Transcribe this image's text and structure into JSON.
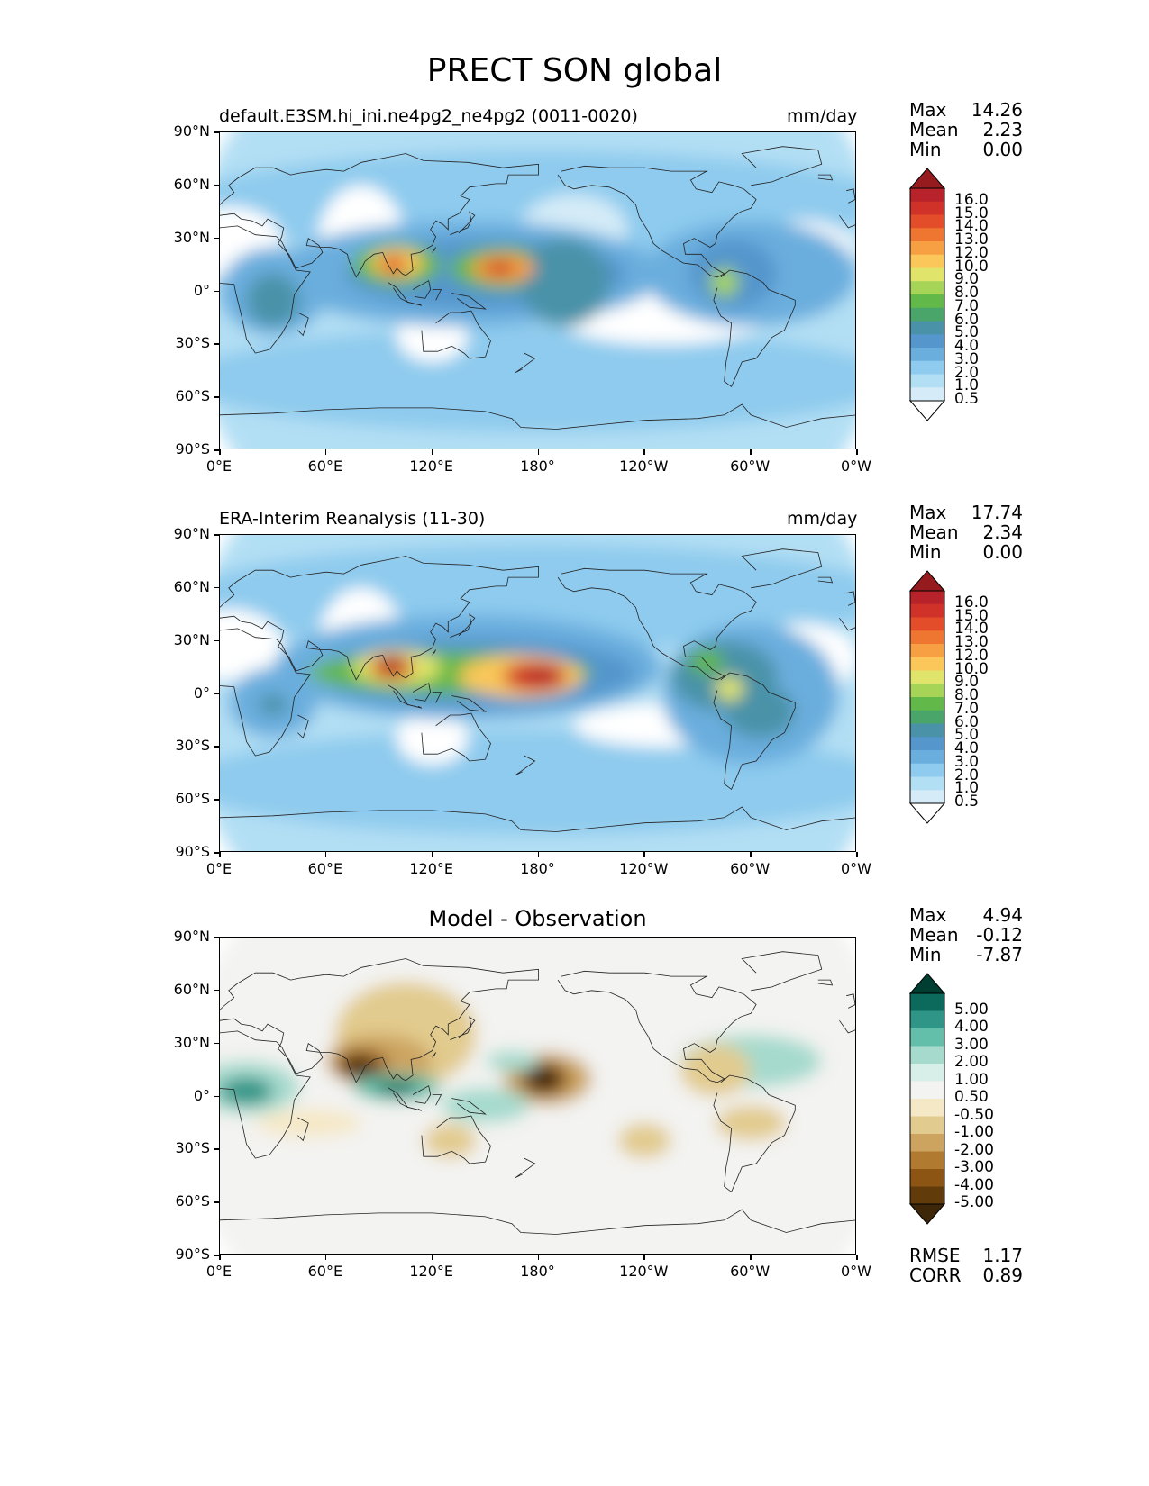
{
  "title": "PRECT SON global",
  "lat_ticks": [
    "90°N",
    "60°N",
    "30°N",
    "0°",
    "30°S",
    "60°S",
    "90°S"
  ],
  "lon_ticks": [
    "0°E",
    "60°E",
    "120°E",
    "180°",
    "120°W",
    "60°W",
    "0°W"
  ],
  "panels": [
    {
      "left_title": "default.E3SM.hi_ini.ne4pg2_ne4pg2 (0011-0020)",
      "right_title": "mm/day",
      "center_title": "",
      "stats": [
        {
          "k": "Max",
          "v": "14.26"
        },
        {
          "k": "Mean",
          "v": "2.23"
        },
        {
          "k": "Min",
          "v": "0.00"
        }
      ],
      "levels": [
        "16.0",
        "15.0",
        "14.0",
        "13.0",
        "12.0",
        "10.0",
        "9.0",
        "8.0",
        "7.0",
        "6.0",
        "5.0",
        "4.0",
        "3.0",
        "2.0",
        "1.0",
        "0.5"
      ]
    },
    {
      "left_title": "ERA-Interim Reanalysis (11-30)",
      "right_title": "mm/day",
      "center_title": "",
      "stats": [
        {
          "k": "Max",
          "v": "17.74"
        },
        {
          "k": "Mean",
          "v": "2.34"
        },
        {
          "k": "Min",
          "v": "0.00"
        }
      ],
      "levels": [
        "16.0",
        "15.0",
        "14.0",
        "13.0",
        "12.0",
        "10.0",
        "9.0",
        "8.0",
        "7.0",
        "6.0",
        "5.0",
        "4.0",
        "3.0",
        "2.0",
        "1.0",
        "0.5"
      ]
    },
    {
      "left_title": "",
      "right_title": "",
      "center_title": "Model - Observation",
      "stats": [
        {
          "k": "Max",
          "v": "4.94"
        },
        {
          "k": "Mean",
          "v": "-0.12"
        },
        {
          "k": "Min",
          "v": "-7.87"
        }
      ],
      "levels": [
        "5.00",
        "4.00",
        "3.00",
        "2.00",
        "1.00",
        "0.50",
        "-0.50",
        "-1.00",
        "-2.00",
        "-3.00",
        "-4.00",
        "-5.00"
      ],
      "metrics": [
        {
          "k": "RMSE",
          "v": "1.17"
        },
        {
          "k": "CORR",
          "v": "0.89"
        }
      ]
    }
  ],
  "colors": {
    "precip": [
      "#ffffff",
      "#d5ecf8",
      "#b3dff4",
      "#8ecbee",
      "#6aaede",
      "#5596cc",
      "#4a92a8",
      "#4aa56a",
      "#63b84a",
      "#a6d457",
      "#e0e46a",
      "#fbc75a",
      "#f7a043",
      "#ef7630",
      "#e34d2a",
      "#d0322a",
      "#b8222a",
      "#961b1e"
    ],
    "diff": [
      "#3d2708",
      "#623b0b",
      "#8c5514",
      "#b07a30",
      "#cca460",
      "#e2cb8e",
      "#f5e8c6",
      "#f3f3f1",
      "#d8efe9",
      "#a5dacd",
      "#64bfaa",
      "#2e9587",
      "#0c6a5c",
      "#003e32"
    ]
  },
  "chart_data": [
    {
      "type": "heatmap",
      "title": "PRECT SON global",
      "subtitle": "default.E3SM.hi_ini.ne4pg2_ne4pg2 (0011-0020)",
      "units": "mm/day",
      "xlim": [
        0,
        360
      ],
      "ylim": [
        -90,
        90
      ],
      "levels": [
        0.5,
        1,
        2,
        3,
        4,
        5,
        6,
        7,
        8,
        9,
        10,
        12,
        13,
        14,
        15,
        16
      ],
      "max": 14.26,
      "mean": 2.23,
      "min": 0.0,
      "features": [
        {
          "lon": 97,
          "lat": 16,
          "value": 14
        },
        {
          "lon": 158,
          "lat": 12,
          "value": 13
        },
        {
          "lon": 285,
          "lat": 5,
          "value": 7
        },
        {
          "lon": 28,
          "lat": -5,
          "value": 6
        }
      ]
    },
    {
      "type": "heatmap",
      "subtitle": "ERA-Interim Reanalysis (11-30)",
      "units": "mm/day",
      "xlim": [
        0,
        360
      ],
      "ylim": [
        -90,
        90
      ],
      "levels": [
        0.5,
        1,
        2,
        3,
        4,
        5,
        6,
        7,
        8,
        9,
        10,
        12,
        13,
        14,
        15,
        16
      ],
      "max": 17.74,
      "mean": 2.34,
      "min": 0.0,
      "features": [
        {
          "lon": 97,
          "lat": 15,
          "value": 16
        },
        {
          "lon": 178,
          "lat": 10,
          "value": 16
        },
        {
          "lon": 288,
          "lat": 3,
          "value": 8
        },
        {
          "lon": 305,
          "lat": -13,
          "value": 6
        },
        {
          "lon": 28,
          "lat": -5,
          "value": 5
        }
      ]
    },
    {
      "type": "heatmap",
      "subtitle": "Model - Observation",
      "xlim": [
        0,
        360
      ],
      "ylim": [
        -90,
        90
      ],
      "levels": [
        -5,
        -4,
        -3,
        -2,
        -1,
        -0.5,
        0.5,
        1,
        2,
        3,
        4,
        5
      ],
      "max": 4.94,
      "mean": -0.12,
      "min": -7.87,
      "rmse": 1.17,
      "corr": 0.89,
      "features": [
        {
          "lon": 80,
          "lat": 17,
          "value": -5
        },
        {
          "lon": 183,
          "lat": 10,
          "value": -6
        },
        {
          "lon": 100,
          "lat": 5,
          "value": 5
        },
        {
          "lon": 15,
          "lat": 3,
          "value": 4
        },
        {
          "lon": 165,
          "lat": 18,
          "value": 2
        },
        {
          "lon": 305,
          "lat": 17,
          "value": 2
        }
      ]
    }
  ]
}
